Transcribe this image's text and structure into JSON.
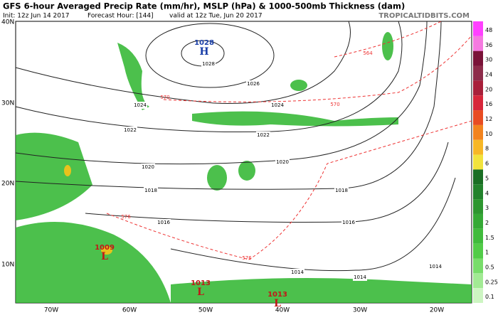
{
  "header": {
    "title": "GFS 6-hour Averaged Precip Rate (mm/hr), MSLP (hPa) & 1000-500mb Thickness (dam)",
    "init": "Init: 12z Jun 14 2017",
    "forecast_hour": "Forecast Hour: [144]",
    "valid": "valid at 12z Tue, Jun 20 2017",
    "site": "TROPICALTIDBITS.COM"
  },
  "map": {
    "latitude_labels": [
      "40N",
      "30N",
      "20N",
      "10N"
    ],
    "longitude_labels": [
      "70W",
      "60W",
      "50W",
      "40W",
      "30W",
      "20W"
    ],
    "isobar_labels": [
      "1028",
      "1026",
      "1024",
      "1024",
      "1022",
      "1022",
      "1020",
      "1020",
      "1018",
      "1018",
      "1016",
      "1016",
      "1014",
      "1014",
      "1014"
    ],
    "thickness_labels": [
      "564",
      "570",
      "570",
      "576",
      "576"
    ],
    "pressure_centers": [
      {
        "symbol": "H",
        "pressure": "1028"
      },
      {
        "symbol": "L",
        "pressure": "1009"
      },
      {
        "symbol": "L",
        "pressure": "1013"
      },
      {
        "symbol": "L",
        "pressure": "1013"
      }
    ]
  },
  "colorbar": {
    "labels": [
      "48",
      "36",
      "30",
      "24",
      "20",
      "16",
      "12",
      "10",
      "8",
      "6",
      "5",
      "4",
      "3",
      "2",
      "1.5",
      "1",
      "0.5",
      "0.25",
      "0.1"
    ]
  }
}
